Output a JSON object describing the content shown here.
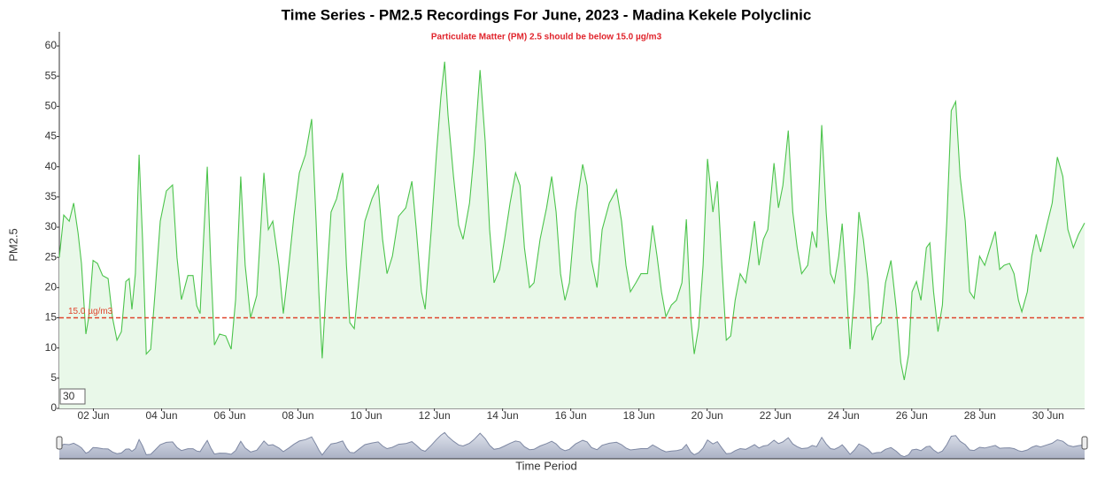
{
  "chart_data": {
    "type": "line",
    "title": "Time Series - PM2.5 Recordings For June, 2023 - Madina Kekele Polyclinic",
    "subtitle": "Particulate Matter (PM) 2.5 should be below 15.0 µg/m3",
    "ylabel": "PM2.5",
    "xlabel": "Time Period",
    "roll_period": 30,
    "color": "#4cc44c",
    "fill": "#e9f8e9",
    "range_selector": true,
    "threshold": {
      "value": 15,
      "label": "15.0 µg/m3",
      "color": "#e0442c"
    },
    "ylim": [
      0,
      60
    ],
    "yticks": [
      0,
      5,
      10,
      15,
      20,
      25,
      30,
      35,
      40,
      45,
      50,
      55,
      60
    ],
    "xlim": [
      1,
      31.07
    ],
    "xticks": [
      {
        "value": 2,
        "label": "02 Jun"
      },
      {
        "value": 4,
        "label": "04 Jun"
      },
      {
        "value": 6,
        "label": "06 Jun"
      },
      {
        "value": 8,
        "label": "08 Jun"
      },
      {
        "value": 10,
        "label": "10 Jun"
      },
      {
        "value": 12,
        "label": "12 Jun"
      },
      {
        "value": 14,
        "label": "14 Jun"
      },
      {
        "value": 16,
        "label": "16 Jun"
      },
      {
        "value": 18,
        "label": "18 Jun"
      },
      {
        "value": 20,
        "label": "20 Jun"
      },
      {
        "value": 22,
        "label": "22 Jun"
      },
      {
        "value": 24,
        "label": "24 Jun"
      },
      {
        "value": 26,
        "label": "26 Jun"
      },
      {
        "value": 28,
        "label": "28 Jun"
      },
      {
        "value": 30,
        "label": "30 Jun"
      }
    ],
    "x": [
      1.0,
      1.13,
      1.29,
      1.42,
      1.55,
      1.65,
      1.78,
      1.86,
      1.99,
      2.12,
      2.27,
      2.43,
      2.56,
      2.69,
      2.82,
      2.95,
      3.05,
      3.13,
      3.23,
      3.34,
      3.44,
      3.55,
      3.68,
      3.81,
      3.96,
      4.14,
      4.32,
      4.45,
      4.58,
      4.77,
      4.92,
      5.03,
      5.13,
      5.23,
      5.34,
      5.44,
      5.55,
      5.7,
      5.88,
      6.04,
      6.17,
      6.32,
      6.45,
      6.61,
      6.79,
      6.92,
      7.0,
      7.13,
      7.26,
      7.44,
      7.57,
      7.73,
      7.88,
      8.04,
      8.22,
      8.4,
      8.53,
      8.61,
      8.71,
      8.82,
      8.97,
      9.13,
      9.31,
      9.42,
      9.52,
      9.65,
      9.78,
      9.96,
      10.17,
      10.35,
      10.48,
      10.61,
      10.77,
      10.95,
      11.16,
      11.34,
      11.47,
      11.62,
      11.73,
      11.91,
      12.06,
      12.19,
      12.3,
      12.4,
      12.56,
      12.71,
      12.84,
      13.03,
      13.16,
      13.34,
      13.49,
      13.62,
      13.75,
      13.91,
      14.06,
      14.22,
      14.38,
      14.51,
      14.64,
      14.79,
      14.92,
      15.1,
      15.29,
      15.44,
      15.57,
      15.7,
      15.83,
      15.96,
      16.14,
      16.35,
      16.48,
      16.61,
      16.77,
      16.92,
      17.13,
      17.34,
      17.49,
      17.62,
      17.75,
      17.91,
      18.06,
      18.25,
      18.4,
      18.53,
      18.66,
      18.79,
      18.95,
      19.1,
      19.26,
      19.39,
      19.52,
      19.62,
      19.75,
      19.88,
      20.01,
      20.17,
      20.3,
      20.43,
      20.56,
      20.69,
      20.82,
      20.97,
      21.13,
      21.23,
      21.39,
      21.52,
      21.65,
      21.78,
      21.96,
      22.09,
      22.22,
      22.38,
      22.51,
      22.64,
      22.77,
      22.95,
      23.08,
      23.21,
      23.36,
      23.49,
      23.62,
      23.73,
      23.86,
      23.96,
      24.06,
      24.19,
      24.32,
      24.45,
      24.58,
      24.71,
      24.84,
      24.97,
      25.1,
      25.23,
      25.39,
      25.55,
      25.68,
      25.78,
      25.91,
      26.01,
      26.14,
      26.27,
      26.43,
      26.53,
      26.64,
      26.77,
      26.9,
      27.03,
      27.16,
      27.29,
      27.42,
      27.57,
      27.7,
      27.83,
      27.99,
      28.14,
      28.3,
      28.45,
      28.58,
      28.71,
      28.87,
      29.0,
      29.13,
      29.23,
      29.39,
      29.52,
      29.65,
      29.78,
      29.96,
      30.12,
      30.27,
      30.43,
      30.58,
      30.74,
      30.89,
      31.07
    ],
    "values": [
      25,
      32,
      31,
      34,
      29,
      24,
      12.3,
      15,
      24.5,
      24,
      22,
      21.5,
      15,
      11.3,
      12.7,
      21,
      21.5,
      16.4,
      22.3,
      42,
      28,
      9,
      9.8,
      19.3,
      31,
      36,
      37,
      25,
      18,
      22,
      22,
      17,
      15.7,
      28,
      40,
      24,
      10.5,
      12.3,
      12,
      9.8,
      18,
      38.4,
      23.7,
      15,
      18.7,
      31,
      39,
      29.6,
      31,
      23.7,
      15.7,
      23.7,
      31.8,
      39,
      42,
      47.9,
      31,
      19.3,
      8.3,
      19.3,
      32.5,
      34.7,
      39,
      23.7,
      14.2,
      13.2,
      20.8,
      31,
      34.7,
      36.9,
      28,
      22.3,
      25.2,
      31.8,
      33.2,
      37.6,
      29.6,
      19.3,
      16.4,
      29.6,
      42,
      51.5,
      57.4,
      48.6,
      38.4,
      30.3,
      28,
      34,
      42,
      56,
      44.2,
      29.6,
      20.8,
      23,
      28,
      34,
      39,
      36.9,
      26.6,
      20,
      20.8,
      28,
      33.2,
      38.4,
      32.5,
      22.3,
      17.9,
      20.8,
      32.5,
      40.4,
      36.9,
      24.5,
      20,
      29.6,
      34,
      36.2,
      31,
      23.7,
      19.3,
      20.8,
      22.3,
      22.3,
      30.3,
      25.2,
      19.3,
      15.2,
      17.1,
      17.9,
      20.8,
      31.3,
      15,
      9,
      13.5,
      23.7,
      41.3,
      32.5,
      37.6,
      23.7,
      11.3,
      12,
      17.9,
      22.3,
      20.8,
      24.5,
      31,
      23.7,
      28,
      29.6,
      40.6,
      33.2,
      36.9,
      46,
      32.5,
      26.6,
      22.3,
      23.7,
      29.3,
      26.6,
      46.9,
      32.5,
      22.3,
      20.8,
      25.2,
      30.6,
      22.3,
      9.8,
      19.3,
      32.5,
      28,
      21.5,
      11.3,
      13.5,
      14.2,
      20.8,
      24.5,
      16.4,
      7.6,
      4.7,
      9,
      19.3,
      21,
      17.9,
      26.6,
      27.4,
      19.3,
      12.7,
      17.1,
      31,
      49.3,
      50.8,
      38.4,
      31,
      19.3,
      18.2,
      25.2,
      23.7,
      26.6,
      29.3,
      23,
      23.7,
      24,
      22.3,
      17.9,
      16,
      19.3,
      25.2,
      28.8,
      25.9,
      30.3,
      34,
      41.6,
      38.4,
      29.6,
      26.6,
      28.8,
      30.7
    ]
  }
}
